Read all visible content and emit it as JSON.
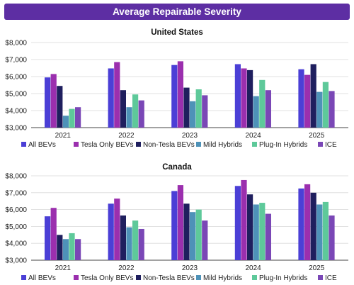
{
  "banner_title": "Average Repairable Severity",
  "colors": {
    "banner": "#5d2ea3",
    "All BEVs": "#4b3fd6",
    "Tesla Only BEVs": "#9b2fae",
    "Non-Tesla BEVs": "#1f1f5e",
    "Mild Hybrids": "#4e92b8",
    "Plug-In Hybrids": "#5ec99a",
    "ICE": "#7a47b6"
  },
  "chart_data": [
    {
      "type": "bar",
      "title": "United States",
      "categories": [
        "2021",
        "2022",
        "2023",
        "2024",
        "2025"
      ],
      "ylim": [
        3000,
        8000
      ],
      "yticks": [
        3000,
        4000,
        5000,
        6000,
        7000,
        8000
      ],
      "ytick_labels": [
        "$3,000",
        "$4,000",
        "$5,000",
        "$6,000",
        "$7,000",
        "$8,000"
      ],
      "grid": true,
      "legend_position": "bottom",
      "series": [
        {
          "name": "All BEVs",
          "values": [
            5950,
            6480,
            6680,
            6730,
            6430
          ]
        },
        {
          "name": "Tesla Only BEVs",
          "values": [
            6150,
            6850,
            6900,
            6480,
            6100
          ]
        },
        {
          "name": "Non-Tesla BEVs",
          "values": [
            5450,
            5200,
            5350,
            6380,
            6730
          ]
        },
        {
          "name": "Mild Hybrids",
          "values": [
            3700,
            4200,
            4550,
            4850,
            5100
          ]
        },
        {
          "name": "Plug-In Hybrids",
          "values": [
            4100,
            4950,
            5250,
            5800,
            5680
          ]
        },
        {
          "name": "ICE",
          "values": [
            4200,
            4600,
            4900,
            5200,
            5150
          ]
        }
      ]
    },
    {
      "type": "bar",
      "title": "Canada",
      "categories": [
        "2021",
        "2022",
        "2023",
        "2024",
        "2025"
      ],
      "ylim": [
        3000,
        8000
      ],
      "yticks": [
        3000,
        4000,
        5000,
        6000,
        7000,
        8000
      ],
      "ytick_labels": [
        "$3,000",
        "$4,000",
        "$5,000",
        "$6,000",
        "$7,000",
        "$8,000"
      ],
      "grid": true,
      "legend_position": "bottom",
      "series": [
        {
          "name": "All BEVs",
          "values": [
            5600,
            6350,
            7100,
            7400,
            7250
          ]
        },
        {
          "name": "Tesla Only BEVs",
          "values": [
            6100,
            6650,
            7450,
            7750,
            7500
          ]
        },
        {
          "name": "Non-Tesla BEVs",
          "values": [
            4500,
            5650,
            6350,
            6900,
            7000
          ]
        },
        {
          "name": "Mild Hybrids",
          "values": [
            4250,
            4950,
            5850,
            6300,
            6300
          ]
        },
        {
          "name": "Plug-In Hybrids",
          "values": [
            4600,
            5350,
            6000,
            6400,
            6450
          ]
        },
        {
          "name": "ICE",
          "values": [
            4250,
            4850,
            5350,
            5750,
            5650
          ]
        }
      ]
    }
  ]
}
